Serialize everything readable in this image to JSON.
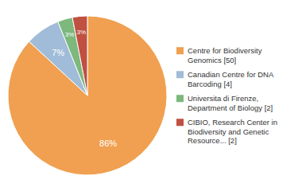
{
  "chart_data": {
    "type": "pie",
    "categories": [
      "Centre for Biodiversity\nGenomics [50]",
      "Canadian Centre for DNA\nBarcoding [4]",
      "Universita di Firenze,\nDepartment of Biology [2]",
      "CIBIO, Research Center in\nBiodiversity and Genetic\nResource... [2]"
    ],
    "values": [
      86,
      7,
      3,
      3
    ],
    "value_labels": [
      "86%",
      "7%",
      "3%",
      "3%"
    ],
    "colors": [
      "#f0a050",
      "#a0bcd8",
      "#7db87d",
      "#c05040"
    ],
    "data_labels": true,
    "legend": "right"
  }
}
